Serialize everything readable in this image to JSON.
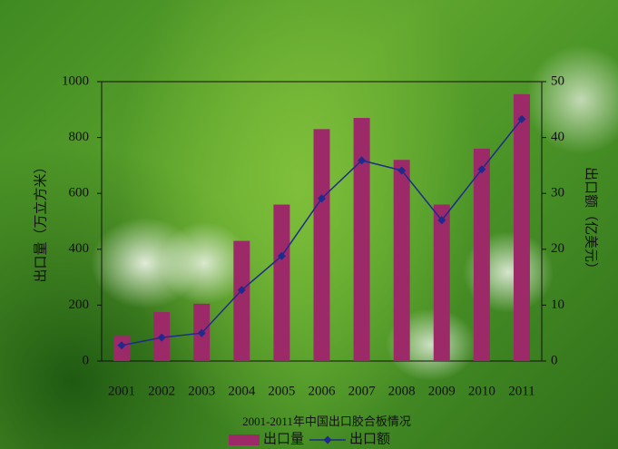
{
  "chart_data": {
    "type": "bar",
    "title": "2001-2011年中国出口胶合板情况",
    "ylabel": "出口量（万立方米）",
    "y2label": "出口额（亿美元）",
    "categories": [
      "2001",
      "2002",
      "2003",
      "2004",
      "2005",
      "2006",
      "2007",
      "2008",
      "2009",
      "2010",
      "2011"
    ],
    "series": [
      {
        "name": "出口量",
        "type": "bar",
        "color": "#9c2a68",
        "values": [
          90,
          175,
          205,
          430,
          560,
          830,
          870,
          720,
          560,
          760,
          955
        ]
      },
      {
        "name": "出口额",
        "type": "line",
        "axis": "y2",
        "color": "#1f2a8c",
        "values": [
          2.8,
          4.2,
          5.0,
          12.7,
          18.8,
          29.1,
          35.9,
          34.1,
          25.2,
          34.3,
          43.3
        ]
      }
    ],
    "ylim": [
      0,
      1000
    ],
    "yticks": [
      0,
      200,
      400,
      600,
      800,
      1000
    ],
    "y2lim": [
      0,
      50
    ],
    "y2ticks": [
      0,
      10,
      20,
      30,
      40,
      50
    ],
    "grid": false
  }
}
